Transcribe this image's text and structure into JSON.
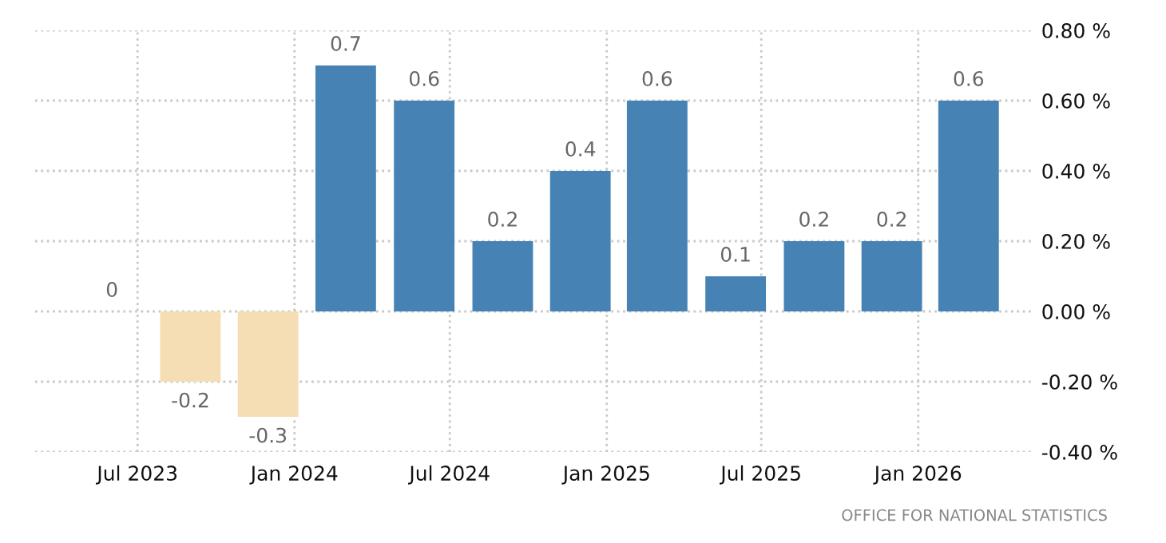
{
  "chart_data": {
    "type": "bar",
    "x": [
      "2023-06",
      "2023-09",
      "2023-12",
      "2024-03",
      "2024-06",
      "2024-09",
      "2024-12",
      "2025-03",
      "2025-06",
      "2025-09",
      "2025-12",
      "2026-03"
    ],
    "values": [
      0,
      -0.2,
      -0.3,
      0.7,
      0.6,
      0.2,
      0.4,
      0.6,
      0.1,
      0.2,
      0.2,
      0.6
    ],
    "colors": [
      "#f5deb3",
      "#f5deb3",
      "#f5deb3",
      "#4682b4",
      "#4682b4",
      "#4682b4",
      "#4682b4",
      "#4682b4",
      "#4682b4",
      "#4682b4",
      "#4682b4",
      "#4682b4"
    ],
    "data_labels": true,
    "xlim": [
      "2023-03-03",
      "2026-05-16"
    ],
    "xticks": [
      {
        "value": "2023-07",
        "label": "Jul 2023"
      },
      {
        "value": "2024-01",
        "label": "Jan 2024"
      },
      {
        "value": "2024-07",
        "label": "Jul 2024"
      },
      {
        "value": "2025-01",
        "label": "Jan 2025"
      },
      {
        "value": "2025-07",
        "label": "Jul 2025"
      },
      {
        "value": "2026-01",
        "label": "Jan 2026"
      }
    ],
    "ylim": [
      -0.4,
      0.8
    ],
    "yticks": [
      {
        "value": -0.4,
        "label": "-0.40 %"
      },
      {
        "value": -0.2,
        "label": "-0.20 %"
      },
      {
        "value": 0,
        "label": "0.00 %"
      },
      {
        "value": 0.2,
        "label": "0.20 %"
      },
      {
        "value": 0.4,
        "label": "0.40 %"
      },
      {
        "value": 0.6,
        "label": "0.60 %"
      },
      {
        "value": 0.8,
        "label": "0.80 %"
      }
    ],
    "grid": true,
    "legend": false,
    "annotations": [
      "OFFICE FOR NATIONAL STATISTICS"
    ]
  }
}
